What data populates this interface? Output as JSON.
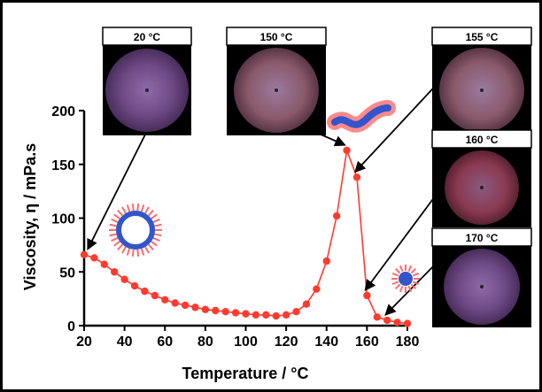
{
  "chart_data": {
    "type": "line",
    "xlabel": "Temperature / °C",
    "ylabel": "Viscosity, η / mPa.s",
    "xlim": [
      20,
      180
    ],
    "ylim": [
      0,
      200
    ],
    "xticks": [
      "20",
      "40",
      "60",
      "80",
      "100",
      "120",
      "140",
      "160",
      "180"
    ],
    "yticks": [
      "0",
      "50",
      "100",
      "150",
      "200"
    ],
    "grid": false,
    "line_color": "#ff3b2f",
    "series": [
      {
        "x": [
          20,
          25,
          30,
          35,
          40,
          45,
          50,
          55,
          60,
          65,
          70,
          75,
          80,
          85,
          90,
          95,
          100,
          105,
          110,
          115,
          120,
          125,
          130,
          135,
          140,
          145,
          150,
          155,
          160,
          165,
          170,
          175,
          180
        ],
        "values": [
          66,
          63,
          57,
          50,
          43,
          37,
          32,
          28,
          24,
          21,
          19,
          17,
          15,
          14,
          13,
          12,
          11,
          10,
          10,
          9,
          10,
          13,
          20,
          34,
          60,
          102,
          163,
          138,
          28,
          8,
          5,
          3,
          2
        ]
      }
    ],
    "micrographs": [
      {
        "label": "20 °C",
        "points_to_x": 20,
        "points_to_y": 66
      },
      {
        "label": "150 °C",
        "points_to_x": 150,
        "points_to_y": 163
      },
      {
        "label": "155 °C",
        "points_to_x": 155,
        "points_to_y": 138
      },
      {
        "label": "160 °C",
        "points_to_x": 160,
        "points_to_y": 28
      },
      {
        "label": "170 °C",
        "points_to_x": 170,
        "points_to_y": 5
      }
    ],
    "colors": {
      "vesicle": "#3355cc",
      "tails": "#ff6b6b",
      "frame": "#000000"
    }
  }
}
